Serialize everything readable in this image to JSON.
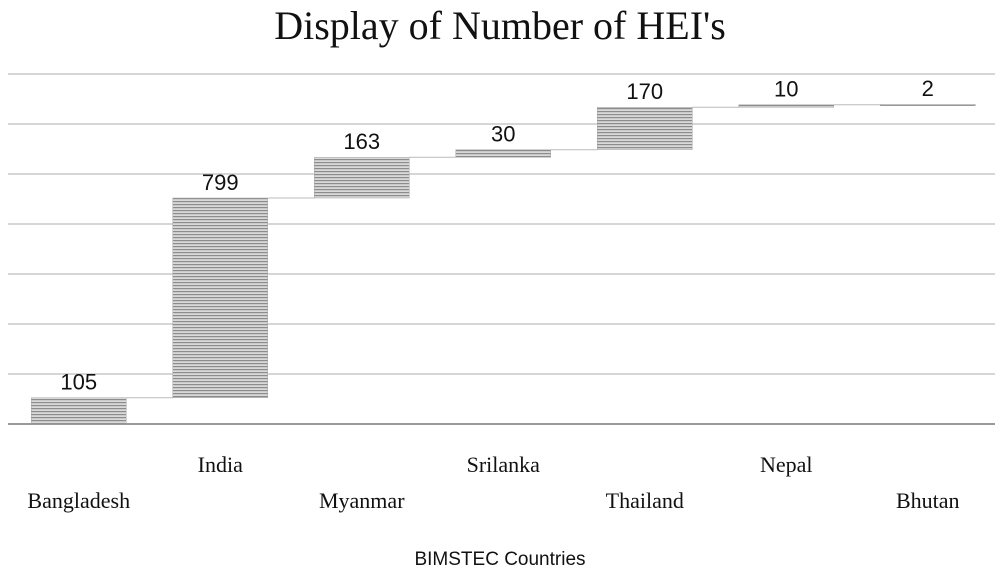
{
  "chart_data": {
    "type": "waterfall",
    "title": "Display of Number of HEI's",
    "x_label": "BIMSTEC Countries",
    "categories": [
      "Bangladesh",
      "India",
      "Myanmar",
      "Srilanka",
      "Thailand",
      "Nepal",
      "Bhutan"
    ],
    "values": [
      105,
      799,
      163,
      30,
      170,
      10,
      2
    ],
    "color": "#a6a6a6",
    "ylim": [
      0,
      1400
    ],
    "yticks": [
      0,
      200,
      400,
      600,
      800,
      1000,
      1200,
      1400
    ],
    "grid": true
  }
}
